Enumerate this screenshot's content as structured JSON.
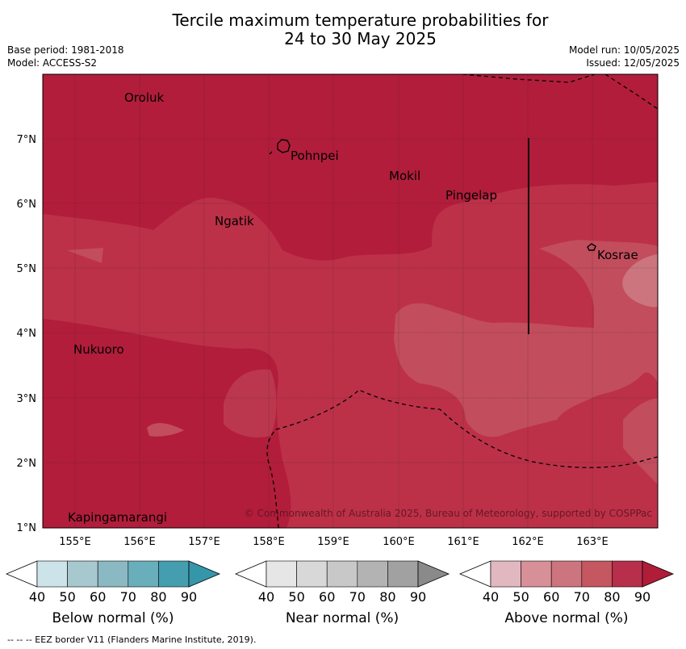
{
  "title": {
    "line1": "Tercile maximum temperature probabilities for",
    "line2": "24 to 30 May 2025"
  },
  "meta": {
    "base_period": "Base period: 1981-2018",
    "model": "Model: ACCESS-S2",
    "model_run": "Model run: 10/05/2025",
    "issued": "Issued: 12/05/2025"
  },
  "map": {
    "lon_ticks": [
      "155°E",
      "156°E",
      "157°E",
      "158°E",
      "159°E",
      "160°E",
      "161°E",
      "162°E",
      "163°E"
    ],
    "lat_ticks": [
      "7°N",
      "6°N",
      "5°N",
      "4°N",
      "3°N",
      "2°N",
      "1°N"
    ],
    "places": [
      "Oroluk",
      "Pohnpei",
      "Mokil",
      "Pingelap",
      "Ngatik",
      "Kosrae",
      "Nukuoro",
      "Kapingamarangi"
    ],
    "copyright": "© Commonwealth of Australia 2025, Bureau of Meteorology, supported by COSPPac",
    "colors": {
      "above_90": "#b21d3b",
      "above_80": "#bc3148",
      "above_70": "#c24d5c",
      "above_60": "#cc757e"
    }
  },
  "colorbars": [
    {
      "label": "Below normal (%)",
      "ticks": [
        "40",
        "50",
        "60",
        "70",
        "80",
        "90"
      ],
      "colors": [
        "#ffffff",
        "#cce3e9",
        "#a8c8cf",
        "#8ab9c3",
        "#69aebb",
        "#449eb0",
        "#3596aa"
      ]
    },
    {
      "label": "Near normal (%)",
      "ticks": [
        "40",
        "50",
        "60",
        "70",
        "80",
        "90"
      ],
      "colors": [
        "#ffffff",
        "#e6e6e6",
        "#d8d8d8",
        "#c8c8c8",
        "#b3b3b3",
        "#a1a1a1",
        "#8a8a8a"
      ]
    },
    {
      "label": "Above normal (%)",
      "ticks": [
        "40",
        "50",
        "60",
        "70",
        "80",
        "90"
      ],
      "colors": [
        "#ffffff",
        "#e2b8c0",
        "#d78f98",
        "#cc757e",
        "#c4575f",
        "#b72f4a",
        "#b01d39"
      ]
    }
  ],
  "footnote": "--  --  -- EEZ border V11 (Flanders Marine Institute, 2019)."
}
